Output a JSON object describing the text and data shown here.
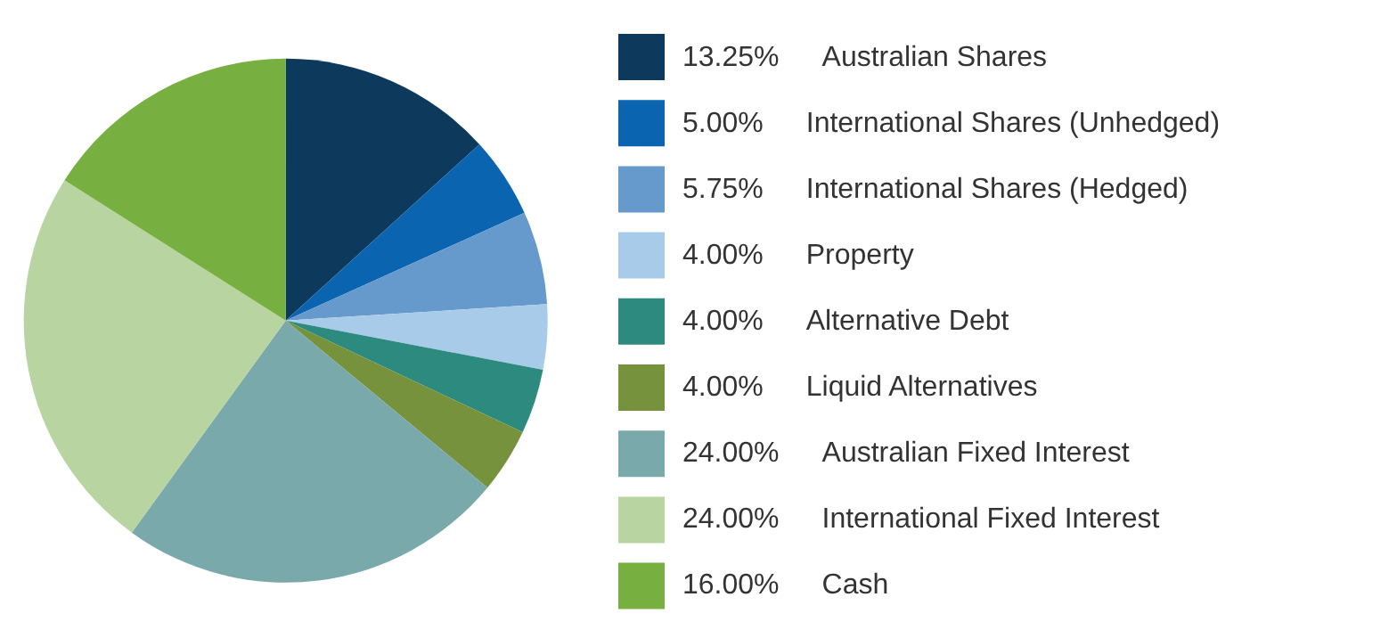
{
  "chart_data": {
    "type": "pie",
    "categories": [
      "Australian Shares",
      "International Shares (Unhedged)",
      "International Shares (Hedged)",
      "Property",
      "Alternative Debt",
      "Liquid Alternatives",
      "Australian Fixed Interest",
      "International Fixed Interest",
      "Cash"
    ],
    "values": [
      13.25,
      5.0,
      5.75,
      4.0,
      4.0,
      4.0,
      24.0,
      24.0,
      16.0
    ],
    "value_labels": [
      "13.25%",
      "5.00%",
      "5.75%",
      "4.00%",
      "4.00%",
      "4.00%",
      "24.00%",
      "24.00%",
      "16.00%"
    ],
    "colors": [
      "#0d3a5c",
      "#0a64b0",
      "#6699cc",
      "#a9cbea",
      "#2d8a7f",
      "#76923c",
      "#7aa9ab",
      "#b8d4a0",
      "#77b041"
    ],
    "legend": "right"
  }
}
